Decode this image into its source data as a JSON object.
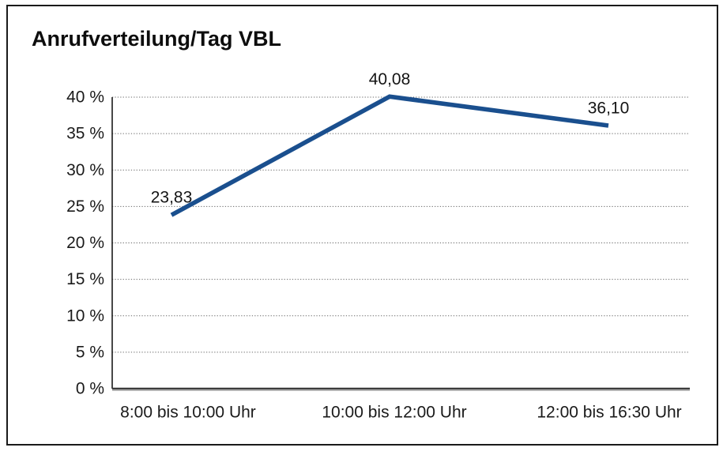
{
  "page": {
    "background": "#ffffff",
    "border_color": "#1a1a1a"
  },
  "chart_data": {
    "type": "line",
    "title": "Anrufverteilung/Tag VBL",
    "categories": [
      "8:00 bis 10:00 Uhr",
      "10:00 bis 12:00 Uhr",
      "12:00 bis 16:30 Uhr"
    ],
    "values": [
      23.83,
      40.08,
      36.1
    ],
    "value_labels": [
      "23,83",
      "40,08",
      "36,10"
    ],
    "xlabel": "",
    "ylabel": "",
    "ylim": [
      0,
      40
    ],
    "ytick_step": 5,
    "ytick_labels": [
      "0 %",
      "5 %",
      "10 %",
      "15 %",
      "20 %",
      "25 %",
      "30 %",
      "35 %",
      "40 %"
    ],
    "grid": "horizontal-dotted",
    "legend": "none",
    "line_color": "#1a4f8e"
  }
}
